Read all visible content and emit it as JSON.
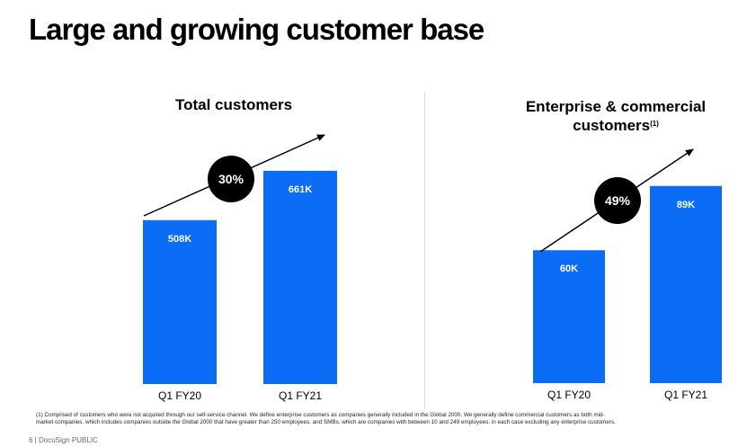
{
  "title": "Large and growing customer base",
  "colors": {
    "bar": "#0b6cf5",
    "badge": "#000000",
    "badge_text": "#ffffff",
    "bar_label": "#ffffff"
  },
  "chart_data": [
    {
      "type": "bar",
      "title": "Total customers",
      "title_note": "",
      "categories": [
        "Q1 FY20",
        "Q1 FY21"
      ],
      "values": [
        508,
        661
      ],
      "value_labels": [
        "508K",
        "661K"
      ],
      "unit": "K",
      "ylim": [
        0,
        800
      ],
      "growth_label": "30%",
      "xlabel": "",
      "ylabel": ""
    },
    {
      "type": "bar",
      "title": "Enterprise & commercial customers",
      "title_note": "(1)",
      "categories": [
        "Q1 FY20",
        "Q1 FY21"
      ],
      "values": [
        60,
        89
      ],
      "value_labels": [
        "60K",
        "89K"
      ],
      "unit": "K",
      "ylim": [
        0,
        108
      ],
      "growth_label": "49%",
      "xlabel": "",
      "ylabel": ""
    }
  ],
  "footnote": "(1) Comprised of customers who were not acquired through our self-service channel. We define enterprise customers as companies generally included in the Global 2000. We generally define commercial customers as both mid-market companies, which includes companies outside the Global 2000 that have greater than 250 employees, and SMBs, which are companies with between 10 and 249 employees, in each case excluding any enterprise customers.",
  "footer": "6  |  DocuSign PUBLIC"
}
